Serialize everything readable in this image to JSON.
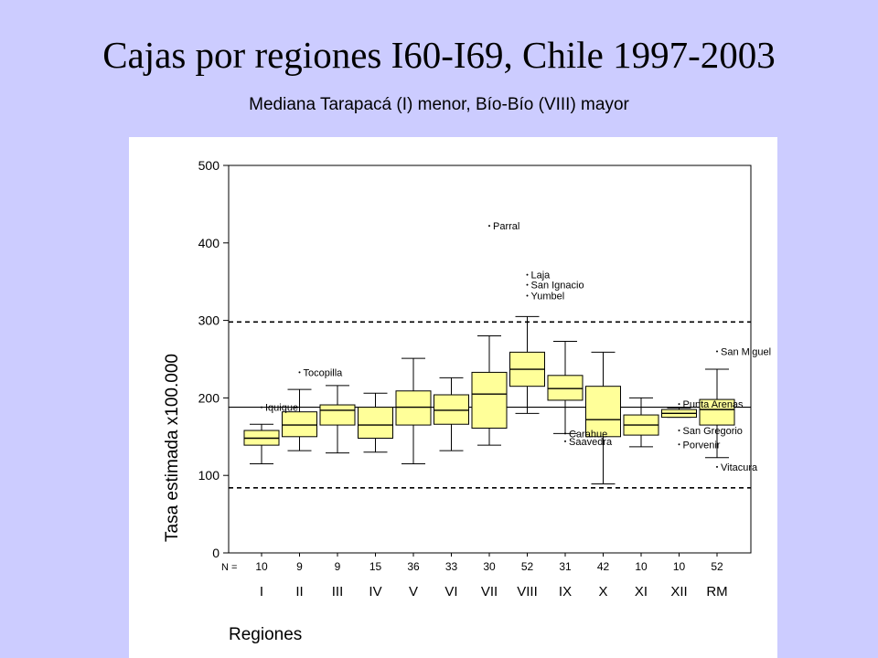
{
  "slide": {
    "title": "Cajas por regiones I60-I69, Chile 1997-2003",
    "subtitle": "Mediana Tarapacá (I) menor, Bío-Bío (VIII) mayor"
  },
  "colors": {
    "background": "#ccccff",
    "panel": "#ffffff",
    "box_fill": "#ffff99",
    "line": "#000000"
  },
  "chart_data": {
    "type": "box",
    "title": "",
    "xlabel": "Regiones",
    "ylabel": "Tasa estimada x100.000",
    "ylim": [
      0,
      500
    ],
    "yticks": [
      0,
      100,
      200,
      300,
      400,
      500
    ],
    "n_prefix": "N =",
    "reference_lines": [
      {
        "style": "solid",
        "value": 188
      },
      {
        "style": "dashed",
        "value": 84
      },
      {
        "style": "dashed",
        "value": 298
      }
    ],
    "categories": [
      "I",
      "II",
      "III",
      "IV",
      "V",
      "VI",
      "VII",
      "VIII",
      "IX",
      "X",
      "XI",
      "XII",
      "RM"
    ],
    "n": [
      10,
      9,
      9,
      15,
      36,
      33,
      30,
      52,
      31,
      42,
      10,
      10,
      52
    ],
    "boxes": [
      {
        "region": "I",
        "min": 115,
        "q1": 139,
        "median": 148,
        "q3": 158,
        "max": 166
      },
      {
        "region": "II",
        "min": 132,
        "q1": 150,
        "median": 165,
        "q3": 182,
        "max": 211
      },
      {
        "region": "III",
        "min": 129,
        "q1": 165,
        "median": 184,
        "q3": 191,
        "max": 216
      },
      {
        "region": "IV",
        "min": 130,
        "q1": 148,
        "median": 165,
        "q3": 188,
        "max": 206
      },
      {
        "region": "V",
        "min": 115,
        "q1": 165,
        "median": 188,
        "q3": 209,
        "max": 251
      },
      {
        "region": "VI",
        "min": 132,
        "q1": 166,
        "median": 184,
        "q3": 204,
        "max": 226
      },
      {
        "region": "VII",
        "min": 139,
        "q1": 161,
        "median": 205,
        "q3": 233,
        "max": 280
      },
      {
        "region": "VIII",
        "min": 180,
        "q1": 215,
        "median": 237,
        "q3": 259,
        "max": 305
      },
      {
        "region": "IX",
        "min": 154,
        "q1": 197,
        "median": 212,
        "q3": 229,
        "max": 273
      },
      {
        "region": "X",
        "min": 89,
        "q1": 150,
        "median": 172,
        "q3": 215,
        "max": 259
      },
      {
        "region": "XI",
        "min": 137,
        "q1": 152,
        "median": 165,
        "q3": 178,
        "max": 200
      },
      {
        "region": "XII",
        "min": 175,
        "q1": 175,
        "median": 180,
        "q3": 185,
        "max": 187
      },
      {
        "region": "RM",
        "min": 123,
        "q1": 165,
        "median": 185,
        "q3": 198,
        "max": 237
      }
    ],
    "outliers": [
      {
        "region": "I",
        "value": 188,
        "label": "Iquique"
      },
      {
        "region": "II",
        "value": 233,
        "label": "Tocopilla"
      },
      {
        "region": "VII",
        "value": 422,
        "label": "Parral"
      },
      {
        "region": "VIII",
        "value": 359,
        "label": "Laja"
      },
      {
        "region": "VIII",
        "value": 346,
        "label": "San Ignacio"
      },
      {
        "region": "VIII",
        "value": 332,
        "label": "Yumbel"
      },
      {
        "region": "IX",
        "value": 154,
        "label": "Carahue"
      },
      {
        "region": "IX",
        "value": 144,
        "label": "Saavedra"
      },
      {
        "region": "XII",
        "value": 192,
        "label": "Punta Arenas"
      },
      {
        "region": "XII",
        "value": 158,
        "label": "San Gregorio"
      },
      {
        "region": "XII",
        "value": 140,
        "label": "Porvenir"
      },
      {
        "region": "RM",
        "value": 260,
        "label": "San Miguel"
      },
      {
        "region": "RM",
        "value": 111,
        "label": "Vitacura"
      }
    ]
  }
}
